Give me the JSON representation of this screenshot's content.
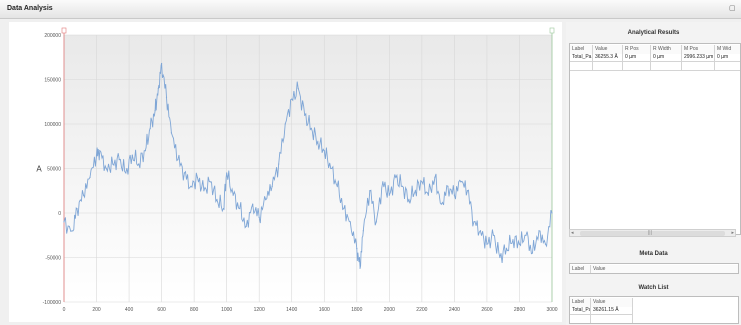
{
  "window": {
    "title": "Data Analysis"
  },
  "chart_data": {
    "type": "line",
    "title": "",
    "xlabel": "",
    "ylabel": "A",
    "xlim": [
      0,
      3000
    ],
    "ylim": [
      -100000,
      200000
    ],
    "x_ticks": [
      0,
      200,
      400,
      600,
      800,
      1000,
      1200,
      1400,
      1600,
      1800,
      2000,
      2200,
      2400,
      2600,
      2800,
      3000
    ],
    "y_ticks": [
      200000,
      150000,
      100000,
      50000,
      0,
      -50000,
      -100000
    ],
    "grid": true,
    "series": [
      {
        "color": "#7fa6d6",
        "x": [
          0,
          50,
          80,
          120,
          160,
          200,
          220,
          260,
          300,
          340,
          380,
          420,
          460,
          500,
          530,
          560,
          580,
          600,
          630,
          660,
          700,
          740,
          780,
          820,
          860,
          900,
          940,
          980,
          1000,
          1040,
          1080,
          1120,
          1160,
          1200,
          1240,
          1280,
          1320,
          1360,
          1400,
          1440,
          1480,
          1520,
          1560,
          1600,
          1640,
          1680,
          1720,
          1760,
          1800,
          1820,
          1840,
          1880,
          1920,
          1960,
          2000,
          2040,
          2080,
          2120,
          2160,
          2200,
          2240,
          2280,
          2320,
          2360,
          2400,
          2440,
          2480,
          2520,
          2560,
          2600,
          2640,
          2680,
          2720,
          2760,
          2800,
          2840,
          2880,
          2920,
          2960,
          3000
        ],
        "y": [
          -10000,
          -20000,
          5000,
          20000,
          40000,
          65000,
          70000,
          50000,
          55000,
          60000,
          45000,
          65000,
          55000,
          70000,
          95000,
          115000,
          140000,
          168000,
          130000,
          90000,
          60000,
          45000,
          30000,
          40000,
          25000,
          35000,
          15000,
          5000,
          45000,
          20000,
          5000,
          -15000,
          10000,
          -5000,
          15000,
          30000,
          55000,
          100000,
          128000,
          140000,
          110000,
          95000,
          80000,
          70000,
          50000,
          30000,
          5000,
          -10000,
          -40000,
          -62000,
          -20000,
          25000,
          -10000,
          35000,
          20000,
          40000,
          30000,
          15000,
          25000,
          35000,
          20000,
          40000,
          10000,
          30000,
          20000,
          35000,
          25000,
          -10000,
          -20000,
          -35000,
          -25000,
          -50000,
          -40000,
          -30000,
          -35000,
          -25000,
          -45000,
          -20000,
          -35000,
          0
        ]
      }
    ]
  },
  "analytical_results": {
    "title": "Analytical Results",
    "columns": [
      "Label",
      "Value",
      "R Pos",
      "R Width",
      "M Pos",
      "M Wid"
    ],
    "rows": [
      [
        "Total_Pa",
        "36255.3 Å",
        "0 µm",
        "0 µm",
        "2996.233 µm",
        "0 µm"
      ]
    ]
  },
  "meta_data": {
    "title": "Meta Data",
    "columns": [
      "Label",
      "Value"
    ]
  },
  "watch_list": {
    "title": "Watch List",
    "columns": [
      "Label",
      "Value"
    ],
    "rows": [
      [
        "Total_Pa",
        "36261.15 Å"
      ]
    ]
  }
}
